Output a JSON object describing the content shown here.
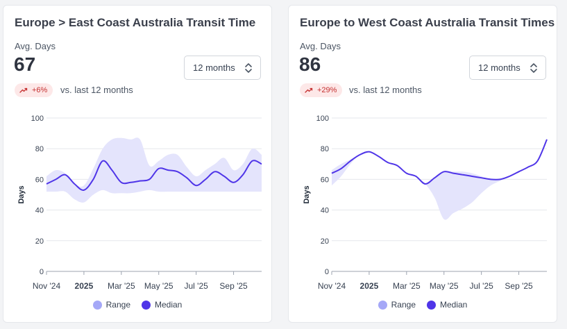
{
  "cards": [
    {
      "title": "Europe > East Coast Australia Transit Time",
      "metric_label": "Avg. Days",
      "metric_value": "67",
      "select_value": "12 months",
      "change_badge": "+6%",
      "change_icon": "trending-up-icon",
      "comparison_text": "vs. last 12 months"
    },
    {
      "title": "Europe to West Coast Australia Transit Times",
      "metric_label": "Avg. Days",
      "metric_value": "86",
      "select_value": "12 months",
      "change_badge": "+29%",
      "change_icon": "trending-up-icon",
      "comparison_text": "vs. last 12 months"
    }
  ],
  "legend": {
    "range_label": "Range",
    "median_label": "Median"
  },
  "colors": {
    "range_fill": "#e4e4fc",
    "range_swatch": "#a5a8f7",
    "median_line": "#4f35e8",
    "badge_bg": "#fde8e8",
    "badge_text": "#c53030",
    "grid": "#e5e7eb"
  },
  "chart_data": [
    {
      "type": "area",
      "ylabel": "Days",
      "ylim": [
        0,
        100
      ],
      "yticks": [
        "0",
        "20",
        "40",
        "60",
        "80",
        "100"
      ],
      "xticks": [
        {
          "label": "Nov '24",
          "x": 0,
          "bold": false
        },
        {
          "label": "2025",
          "x": 2,
          "bold": true
        },
        {
          "label": "Mar '25",
          "x": 4,
          "bold": false
        },
        {
          "label": "May '25",
          "x": 6,
          "bold": false
        },
        {
          "label": "Jul '25",
          "x": 8,
          "bold": false
        },
        {
          "label": "Sep '25",
          "x": 10,
          "bold": false
        }
      ],
      "x": [
        0,
        0.5,
        1,
        1.5,
        2,
        2.5,
        3,
        3.5,
        4,
        4.5,
        5,
        5.5,
        6,
        6.5,
        7,
        7.5,
        8,
        8.5,
        9,
        9.5,
        10,
        10.5,
        11,
        11.5
      ],
      "series": [
        {
          "name": "Median",
          "values": [
            57,
            60,
            63,
            57,
            53,
            60,
            72,
            66,
            58,
            58,
            59,
            60,
            67,
            66,
            65,
            61,
            56,
            60,
            65,
            62,
            58,
            63,
            72,
            70
          ]
        },
        {
          "name": "Range",
          "upper": [
            62,
            66,
            64,
            57,
            56,
            67,
            80,
            86,
            87,
            86,
            86,
            69,
            72,
            76,
            76,
            68,
            62,
            66,
            70,
            74,
            66,
            70,
            80,
            76
          ],
          "lower": [
            52,
            52,
            52,
            47,
            45,
            50,
            53,
            51,
            51,
            51,
            52,
            53,
            52,
            52,
            52,
            52,
            52,
            52,
            52,
            52,
            52,
            52,
            52,
            52
          ]
        }
      ]
    },
    {
      "type": "area",
      "ylabel": "Days",
      "ylim": [
        0,
        100
      ],
      "yticks": [
        "0",
        "20",
        "40",
        "60",
        "80",
        "100"
      ],
      "xticks": [
        {
          "label": "Nov '24",
          "x": 0,
          "bold": false
        },
        {
          "label": "2025",
          "x": 2,
          "bold": true
        },
        {
          "label": "Mar '25",
          "x": 4,
          "bold": false
        },
        {
          "label": "May '25",
          "x": 6,
          "bold": false
        },
        {
          "label": "Jul '25",
          "x": 8,
          "bold": false
        },
        {
          "label": "Sep '25",
          "x": 10,
          "bold": false
        }
      ],
      "x": [
        0,
        0.5,
        1,
        1.5,
        2,
        2.5,
        3,
        3.5,
        4,
        4.5,
        5,
        5.5,
        6,
        6.5,
        7,
        7.5,
        8,
        8.5,
        9,
        9.5,
        10,
        10.5,
        11,
        11.5
      ],
      "series": [
        {
          "name": "Median",
          "values": [
            64,
            67,
            72,
            76,
            78,
            75,
            71,
            69,
            64,
            62,
            57,
            61,
            65,
            64,
            63,
            62,
            61,
            60,
            60,
            62,
            65,
            68,
            72,
            86
          ]
        },
        {
          "name": "Range",
          "upper": [
            66,
            70,
            73,
            76,
            78,
            75,
            71,
            69,
            64,
            62,
            57,
            61,
            65,
            65,
            65,
            64,
            62,
            60,
            60,
            62,
            65,
            68,
            72,
            86
          ],
          "lower": [
            56,
            62,
            70,
            76,
            78,
            75,
            71,
            69,
            64,
            62,
            57,
            48,
            34,
            38,
            41,
            45,
            51,
            56,
            59,
            62,
            65,
            68,
            72,
            86
          ]
        }
      ]
    }
  ]
}
